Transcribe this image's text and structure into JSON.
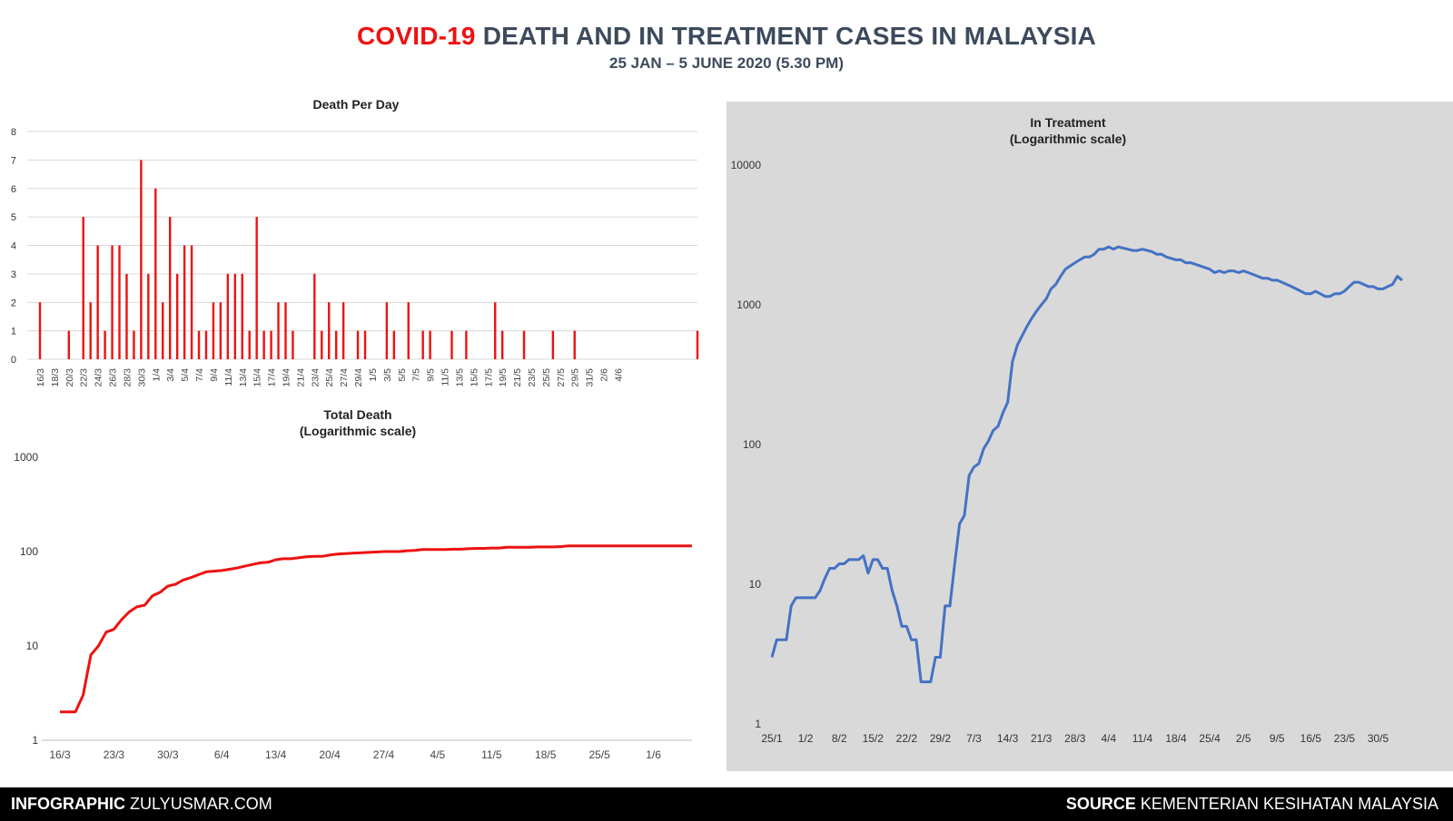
{
  "header": {
    "title_highlight": "COVID-19",
    "title_rest": "DEATH AND IN TREATMENT CASES IN MALAYSIA",
    "subtitle": "25 JAN – 5 JUNE 2020 (5.30 PM)"
  },
  "footer": {
    "left_bold": "INFOGRAPHIC",
    "left_text": "ZULYUSMAR.COM",
    "right_bold": "SOURCE",
    "right_text": "KEMENTERIAN KESIHATAN MALAYSIA"
  },
  "colors": {
    "red": "#ee1111",
    "blue": "#4472c4",
    "grid": "#d9d9d9",
    "panel_bg": "#d9d9d9"
  },
  "chart_data": [
    {
      "id": "death",
      "type": "bar",
      "title": "Death Per Day",
      "xlabel": "",
      "ylabel": "",
      "ylim": [
        0,
        8
      ],
      "yticks": [
        0,
        1,
        2,
        3,
        4,
        5,
        6,
        7,
        8
      ],
      "grid": true,
      "x_tick_labels": [
        "16/3",
        "18/3",
        "20/3",
        "22/3",
        "24/3",
        "26/3",
        "28/3",
        "30/3",
        "1/4",
        "3/4",
        "5/4",
        "7/4",
        "9/4",
        "11/4",
        "13/4",
        "15/4",
        "17/4",
        "19/4",
        "21/4",
        "23/4",
        "25/4",
        "27/4",
        "29/4",
        "1/5",
        "3/5",
        "5/5",
        "7/5",
        "9/5",
        "11/5",
        "13/5",
        "15/5",
        "17/5",
        "19/5",
        "21/5",
        "23/5",
        "25/5",
        "27/5",
        "29/5",
        "31/5",
        "2/6",
        "4/6"
      ],
      "start_date": "16/3",
      "values": [
        2,
        0,
        0,
        0,
        1,
        0,
        5,
        2,
        4,
        1,
        4,
        4,
        3,
        1,
        7,
        3,
        6,
        2,
        5,
        3,
        4,
        4,
        1,
        1,
        2,
        2,
        3,
        3,
        3,
        1,
        5,
        1,
        1,
        2,
        2,
        1,
        0,
        0,
        3,
        1,
        2,
        1,
        2,
        0,
        1,
        1,
        0,
        0,
        2,
        1,
        0,
        2,
        0,
        1,
        1,
        0,
        0,
        1,
        0,
        1,
        0,
        0,
        0,
        2,
        1,
        0,
        0,
        1,
        0,
        0,
        0,
        1,
        0,
        0,
        1,
        0,
        0,
        0,
        0,
        0,
        0,
        0,
        0,
        0,
        0,
        0,
        0,
        0,
        0,
        0,
        0,
        1
      ]
    },
    {
      "id": "total",
      "type": "line",
      "scale": "log",
      "title": "Total Death",
      "subtitle": "(Logarithmic scale)",
      "xlabel": "",
      "ylabel": "",
      "ylim": [
        1,
        1000
      ],
      "ytick_labels": [
        "1",
        "10",
        "100",
        "1000"
      ],
      "x_tick_labels": [
        "16/3",
        "23/3",
        "30/3",
        "6/4",
        "13/4",
        "20/4",
        "27/4",
        "4/5",
        "11/5",
        "18/5",
        "25/5",
        "1/6"
      ],
      "start_date": "16/3",
      "values": [
        2,
        2,
        2,
        3,
        8,
        10,
        14,
        15,
        19,
        23,
        26,
        27,
        34,
        37,
        43,
        45,
        50,
        53,
        57,
        61,
        62,
        63,
        65,
        67,
        70,
        73,
        76,
        77,
        82,
        84,
        84,
        86,
        88,
        89,
        89,
        92,
        94,
        95,
        96,
        97,
        98,
        99,
        100,
        100,
        100,
        102,
        103,
        105,
        105,
        105,
        105,
        106,
        106,
        107,
        108,
        108,
        109,
        109,
        111,
        111,
        111,
        111,
        112,
        112,
        112,
        113,
        115,
        115,
        115,
        115,
        115,
        115,
        115,
        115,
        115,
        115,
        115,
        115,
        115,
        115,
        115,
        115,
        115
      ]
    },
    {
      "id": "treat",
      "type": "line",
      "scale": "log",
      "title": "In Treatment",
      "subtitle": "(Logarithmic scale)",
      "xlabel": "",
      "ylabel": "",
      "ylim": [
        1,
        10000
      ],
      "ytick_labels": [
        "1",
        "10",
        "100",
        "1000",
        "10000"
      ],
      "x_tick_labels": [
        "25/1",
        "1/2",
        "8/2",
        "15/2",
        "22/2",
        "29/2",
        "7/3",
        "14/3",
        "21/3",
        "28/3",
        "4/4",
        "11/4",
        "18/4",
        "25/4",
        "2/5",
        "9/5",
        "16/5",
        "23/5",
        "30/5"
      ],
      "start_date": "25/1",
      "values": [
        3,
        4,
        4,
        4,
        7,
        8,
        8,
        8,
        8,
        8,
        9,
        11,
        13,
        13,
        14,
        14,
        15,
        15,
        15,
        16,
        12,
        15,
        15,
        13,
        13,
        9,
        7,
        5,
        5,
        4,
        4,
        2,
        2,
        2,
        3,
        3,
        7,
        7,
        14,
        27,
        31,
        60,
        69,
        73,
        93,
        106,
        126,
        135,
        168,
        200,
        392,
        513,
        600,
        700,
        800,
        900,
        1000,
        1100,
        1300,
        1400,
        1600,
        1800,
        1900,
        2000,
        2100,
        2200,
        2200,
        2300,
        2500,
        2500,
        2600,
        2500,
        2600,
        2550,
        2500,
        2450,
        2450,
        2500,
        2450,
        2400,
        2300,
        2300,
        2200,
        2150,
        2100,
        2100,
        2000,
        2000,
        1950,
        1900,
        1850,
        1800,
        1700,
        1750,
        1700,
        1750,
        1750,
        1700,
        1750,
        1700,
        1650,
        1600,
        1550,
        1550,
        1500,
        1500,
        1450,
        1400,
        1350,
        1300,
        1250,
        1200,
        1200,
        1250,
        1200,
        1150,
        1150,
        1200,
        1200,
        1250,
        1350,
        1450,
        1450,
        1400,
        1350,
        1350,
        1300,
        1300,
        1350,
        1400,
        1600,
        1500
      ]
    }
  ]
}
